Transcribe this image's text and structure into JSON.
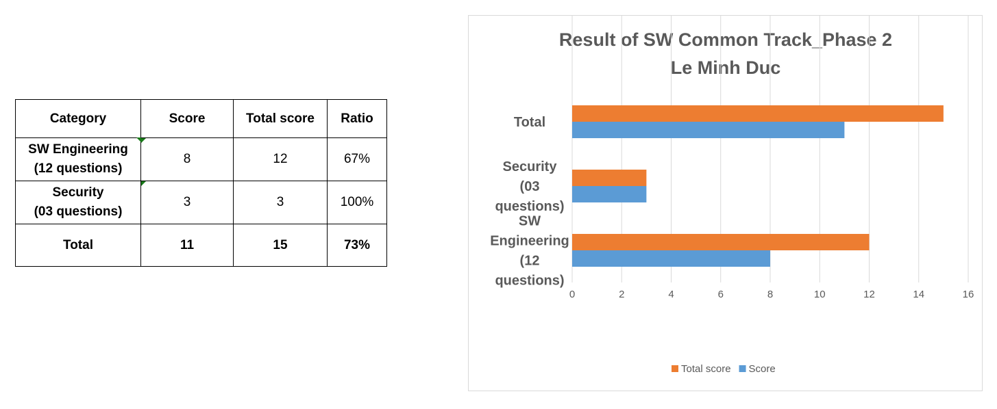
{
  "table": {
    "headers": [
      "Category",
      "Score",
      "Total score",
      "Ratio"
    ],
    "rows": [
      {
        "category_line1": "SW Engineering",
        "category_line2": "(12 questions)",
        "score": "8",
        "total": "12",
        "ratio": "67%"
      },
      {
        "category_line1": "Security",
        "category_line2": "(03 questions)",
        "score": "3",
        "total": "3",
        "ratio": "100%"
      }
    ],
    "total_row": {
      "category": "Total",
      "score": "11",
      "total": "15",
      "ratio": "73%"
    }
  },
  "colors": {
    "total_score": "#ED7D31",
    "score": "#5B9BD5",
    "grid": "#d9d9d9",
    "text": "#595959"
  },
  "chart_data": {
    "type": "bar",
    "orientation": "horizontal",
    "title": [
      "Result of SW Common Track_Phase 2",
      "Le Minh Duc"
    ],
    "categories": [
      [
        "SW",
        "Engineering",
        "(12",
        "questions)"
      ],
      [
        "Security",
        "(03",
        "questions)"
      ],
      [
        "Total"
      ]
    ],
    "series": [
      {
        "name": "Score",
        "values": [
          8,
          3,
          11
        ],
        "color": "#5B9BD5"
      },
      {
        "name": "Total score",
        "values": [
          12,
          3,
          15
        ],
        "color": "#ED7D31"
      }
    ],
    "xlim": [
      0,
      16
    ],
    "xticks": [
      0,
      2,
      4,
      6,
      8,
      10,
      12,
      14,
      16
    ],
    "grid": true,
    "legend": {
      "placement": "bottom",
      "order": [
        "Total score",
        "Score"
      ]
    }
  }
}
